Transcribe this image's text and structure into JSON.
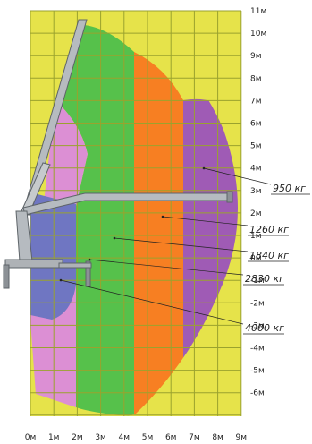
{
  "diagram": {
    "x_axis_labels": [
      "0м",
      "1м",
      "2м",
      "3м",
      "4м",
      "5м",
      "6м",
      "7м",
      "8м",
      "9м"
    ],
    "y_axis_labels": [
      "11м",
      "10м",
      "9м",
      "8м",
      "7м",
      "6м",
      "5м",
      "4м",
      "3м",
      "2м",
      "1м",
      "0м",
      "-1м",
      "-2м",
      "-3м",
      "-4м",
      "-5м",
      "-6м"
    ],
    "load_zones": [
      {
        "label": "950 кг",
        "color": "#9f5bb5"
      },
      {
        "label": "1260 кг",
        "color": "#f77f22"
      },
      {
        "label": "1840 кг",
        "color": "#56c14b"
      },
      {
        "label": "2830 кг",
        "color": "#dc8fd4"
      },
      {
        "label": "4000 кг",
        "color": "#6f76c2"
      }
    ],
    "colors": {
      "background": "#e6e34a",
      "grid": "#9aa22e",
      "crane": "#b6bbc0",
      "crane_outline": "#5e6469"
    }
  }
}
